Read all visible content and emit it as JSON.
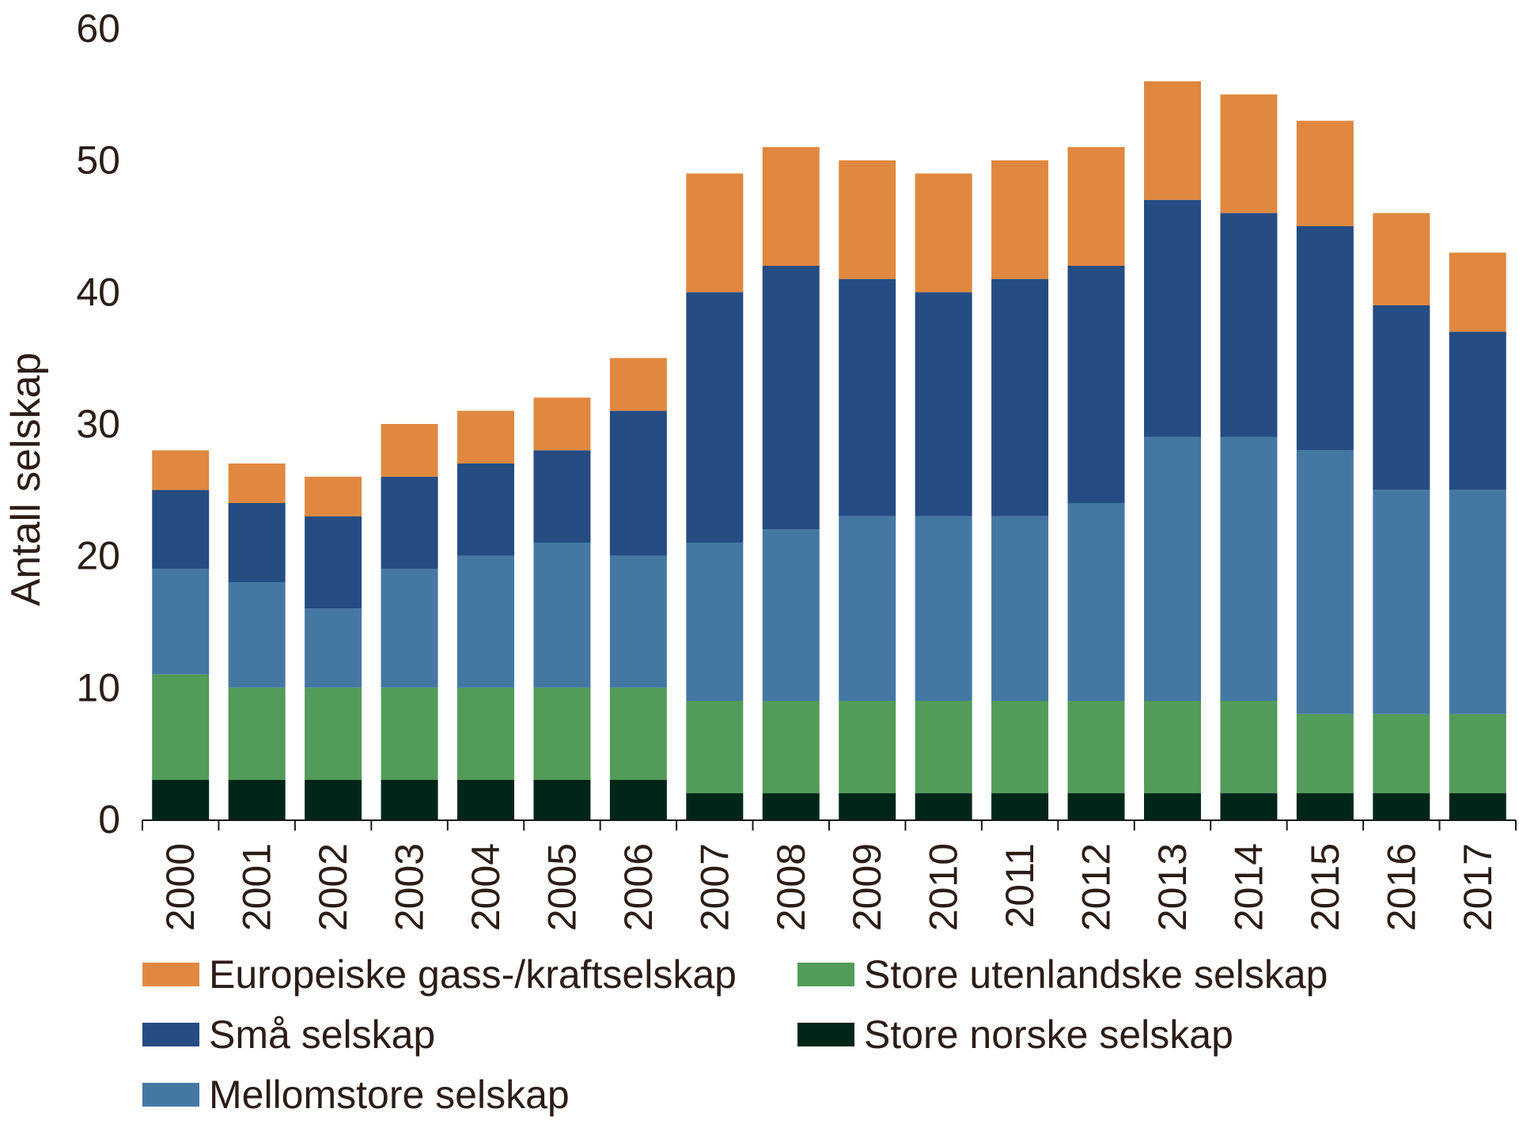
{
  "chart_data": {
    "type": "bar",
    "stacked": true,
    "title": "",
    "xlabel": "",
    "ylabel": "Antall selskap",
    "ylim": [
      0,
      60
    ],
    "yticks": [
      0,
      10,
      20,
      30,
      40,
      50,
      60
    ],
    "categories": [
      "2000",
      "2001",
      "2002",
      "2003",
      "2004",
      "2005",
      "2006",
      "2007",
      "2008",
      "2009",
      "2010",
      "2011",
      "2012",
      "2013",
      "2014",
      "2015",
      "2016",
      "2017"
    ],
    "series": [
      {
        "name": "Store norske selskap",
        "color": "#00261a",
        "values": [
          3,
          3,
          3,
          3,
          3,
          3,
          3,
          2,
          2,
          2,
          2,
          2,
          2,
          2,
          2,
          2,
          2,
          2
        ]
      },
      {
        "name": "Store utenlandske selskap",
        "color": "#529b58",
        "values": [
          8,
          7,
          7,
          7,
          7,
          7,
          7,
          7,
          7,
          7,
          7,
          7,
          7,
          7,
          7,
          6,
          6,
          6
        ]
      },
      {
        "name": "Mellomstore selskap",
        "color": "#4478a3",
        "values": [
          8,
          8,
          6,
          9,
          10,
          11,
          10,
          12,
          13,
          14,
          14,
          14,
          15,
          20,
          20,
          20,
          17,
          17
        ]
      },
      {
        "name": "Små selskap",
        "color": "#254c83",
        "values": [
          6,
          6,
          7,
          7,
          7,
          7,
          11,
          19,
          20,
          18,
          17,
          18,
          18,
          18,
          17,
          17,
          14,
          12
        ]
      },
      {
        "name": "Europeiske gass-/kraftselskap",
        "color": "#e0883f",
        "values": [
          3,
          3,
          3,
          4,
          4,
          4,
          4,
          9,
          9,
          9,
          9,
          9,
          9,
          9,
          9,
          8,
          7,
          6
        ]
      }
    ],
    "legend": {
      "placement": "bottom",
      "order": [
        "Europeiske gass-/kraftselskap",
        "Små selskap",
        "Mellomstore selskap",
        "Store utenlandske selskap",
        "Store norske selskap"
      ]
    },
    "grid": false
  }
}
